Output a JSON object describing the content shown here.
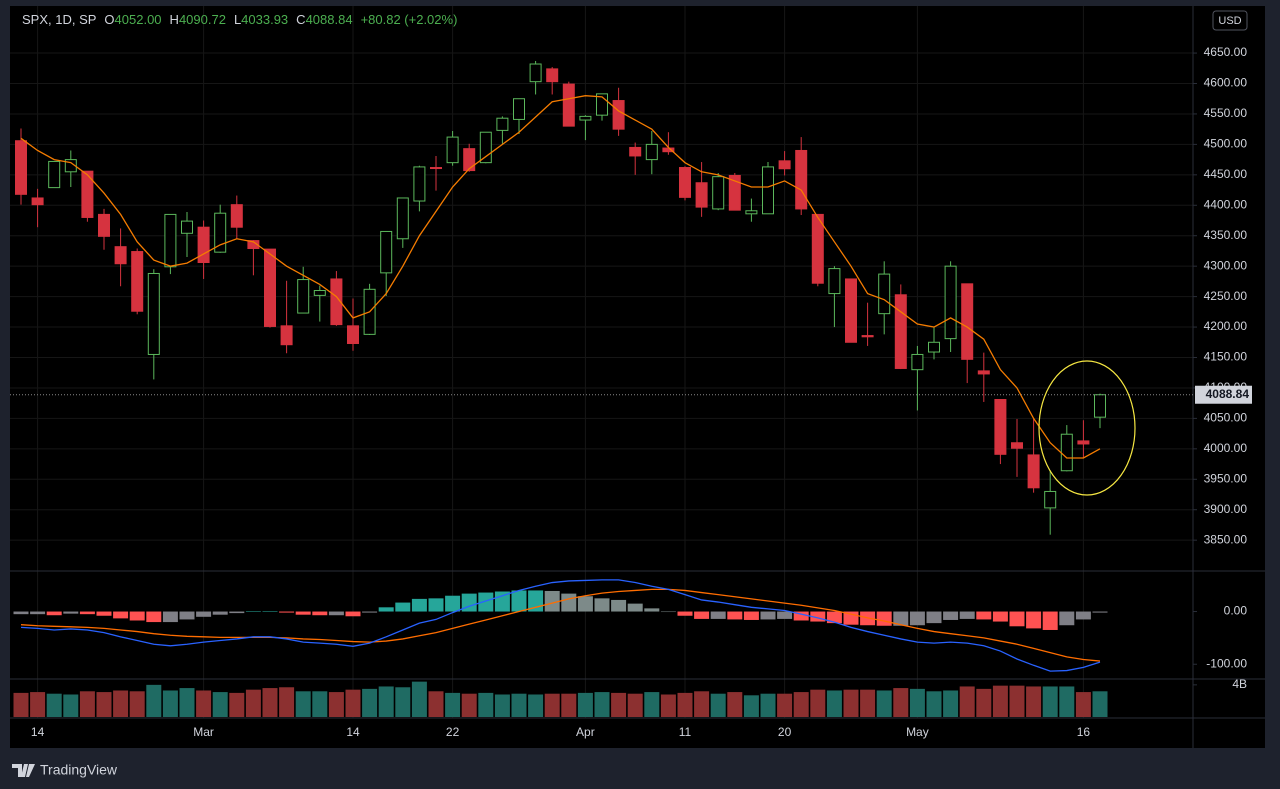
{
  "brand": "TradingView",
  "chart_data": {
    "type": "candlestick",
    "title": "SPX, 1D, SP",
    "ohlc_legend": [
      {
        "key": "O",
        "value": "4052.00"
      },
      {
        "key": "H",
        "value": "4090.72"
      },
      {
        "key": "L",
        "value": "4033.93"
      },
      {
        "key": "C",
        "value": "4088.84"
      }
    ],
    "change": "+80.82 (+2.02%)",
    "currency": "USD",
    "up_color": "#5cb85c",
    "down_color": "#d6333f",
    "grid": true,
    "categories": [
      null,
      "14",
      null,
      null,
      null,
      null,
      null,
      null,
      null,
      null,
      null,
      "Mar",
      null,
      null,
      null,
      null,
      null,
      null,
      null,
      null,
      "14",
      null,
      null,
      null,
      null,
      null,
      "22",
      null,
      null,
      null,
      null,
      null,
      null,
      null,
      "Apr",
      null,
      null,
      null,
      null,
      null,
      "11",
      null,
      null,
      null,
      null,
      null,
      "20",
      null,
      null,
      null,
      null,
      null,
      null,
      null,
      "May",
      null,
      null,
      null,
      null,
      null,
      null,
      null,
      null,
      null,
      "16",
      null
    ],
    "open": [
      4506,
      4412,
      4429,
      4455,
      4456,
      4385,
      4332,
      4324,
      4155,
      4299,
      4354,
      4364,
      4323,
      4401,
      4342,
      4328,
      4202,
      4223,
      4252,
      4279,
      4202,
      4188,
      4289,
      4345,
      4407,
      4462,
      4470,
      4493,
      4470,
      4523,
      4541,
      4603,
      4624,
      4599,
      4540,
      4548,
      4572,
      4495,
      4475,
      4494,
      4462,
      4437,
      4394,
      4449,
      4386,
      4386,
      4473,
      4490,
      4385,
      4255,
      4279,
      4186,
      4222,
      4253,
      4130,
      4159,
      4181,
      4271,
      4128,
      4081,
      4010,
      3990,
      3903,
      3964,
      4013,
      4052
    ],
    "high": [
      4526,
      4427,
      4472,
      4490,
      4456,
      4394,
      4362,
      4329,
      4295,
      4385,
      4389,
      4375,
      4401,
      4416,
      4343,
      4328,
      4276,
      4299,
      4268,
      4292,
      4247,
      4271,
      4357,
      4412,
      4465,
      4481,
      4522,
      4501,
      4520,
      4546,
      4575,
      4637,
      4627,
      4603,
      4548,
      4583,
      4593,
      4503,
      4522,
      4520,
      4464,
      4471,
      4453,
      4453,
      4411,
      4471,
      4489,
      4512,
      4385,
      4300,
      4279,
      4240,
      4308,
      4270,
      4169,
      4200,
      4308,
      4271,
      4158,
      4081,
      4049,
      4050,
      3965,
      4039,
      4047,
      4090.72
    ],
    "low": [
      4401,
      4364,
      4429,
      4430,
      4373,
      4327,
      4267,
      4221,
      4114,
      4287,
      4315,
      4279,
      4322,
      4345,
      4285,
      4199,
      4157,
      4223,
      4209,
      4202,
      4161,
      4187,
      4251,
      4330,
      4390,
      4424,
      4465,
      4455,
      4469,
      4501,
      4517,
      4582,
      4582,
      4530,
      4507,
      4539,
      4514,
      4450,
      4451,
      4483,
      4408,
      4381,
      4392,
      4392,
      4373,
      4386,
      4449,
      4384,
      4267,
      4200,
      4175,
      4169,
      4188,
      4131,
      4063,
      4147,
      4159,
      4108,
      4077,
      3975,
      3954,
      3928,
      3859,
      3963,
      3984,
      4033.93
    ],
    "close": [
      4418,
      4401,
      4472,
      4475,
      4380,
      4349,
      4304,
      4226,
      4288,
      4385,
      4374,
      4306,
      4387,
      4364,
      4329,
      4201,
      4171,
      4278,
      4260,
      4204,
      4173,
      4262,
      4357,
      4412,
      4463,
      4461,
      4512,
      4457,
      4520,
      4543,
      4575,
      4632,
      4603,
      4530,
      4546,
      4583,
      4525,
      4481,
      4500,
      4488,
      4413,
      4397,
      4447,
      4392,
      4391,
      4463,
      4460,
      4394,
      4272,
      4296,
      4175,
      4184,
      4287,
      4132,
      4155,
      4175,
      4300,
      4147,
      4123,
      3991,
      4001,
      3936,
      3930,
      4024,
      4008,
      4088.84
    ],
    "ylim": [
      3801,
      4724
    ],
    "yticks": [
      {
        "value": 3850,
        "label": "3850.00"
      },
      {
        "value": 3900,
        "label": "3900.00"
      },
      {
        "value": 3950,
        "label": "3950.00"
      },
      {
        "value": 4000,
        "label": "4000.00"
      },
      {
        "value": 4050,
        "label": "4050.00"
      },
      {
        "value": 4100,
        "label": "4100.00"
      },
      {
        "value": 4150,
        "label": "4150.00"
      },
      {
        "value": 4200,
        "label": "4200.00"
      },
      {
        "value": 4250,
        "label": "4250.00"
      },
      {
        "value": 4300,
        "label": "4300.00"
      },
      {
        "value": 4350,
        "label": "4350.00"
      },
      {
        "value": 4400,
        "label": "4400.00"
      },
      {
        "value": 4450,
        "label": "4450.00"
      },
      {
        "value": 4500,
        "label": "4500.00"
      },
      {
        "value": 4550,
        "label": "4550.00"
      },
      {
        "value": 4600,
        "label": "4600.00"
      },
      {
        "value": 4650,
        "label": "4650.00"
      }
    ],
    "ma": {
      "color": "#f57c00",
      "values": [
        4510,
        4490,
        4475,
        4470,
        4450,
        4420,
        4385,
        4340,
        4310,
        4300,
        4305,
        4320,
        4335,
        4345,
        4340,
        4320,
        4300,
        4285,
        4270,
        4250,
        4215,
        4225,
        4255,
        4300,
        4350,
        4390,
        4430,
        4460,
        4480,
        4500,
        4520,
        4545,
        4570,
        4575,
        4580,
        4578,
        4555,
        4540,
        4525,
        4495,
        4470,
        4455,
        4450,
        4440,
        4430,
        4430,
        4440,
        4425,
        4380,
        4340,
        4300,
        4255,
        4245,
        4225,
        4205,
        4200,
        4215,
        4200,
        4180,
        4130,
        4100,
        4050,
        4010,
        3985,
        3985,
        4000
      ]
    },
    "macd": {
      "ylim": [
        -128,
        75
      ],
      "yticks": [
        {
          "value": 0,
          "label": "0.00"
        },
        {
          "value": -100,
          "label": "-100.00"
        }
      ],
      "line": {
        "color": "#2962ff",
        "values": [
          -30,
          -32,
          -35,
          -33,
          -35,
          -40,
          -48,
          -55,
          -62,
          -65,
          -62,
          -58,
          -55,
          -52,
          -48,
          -48,
          -52,
          -58,
          -60,
          -62,
          -66,
          -60,
          -48,
          -35,
          -22,
          -15,
          -2,
          10,
          20,
          30,
          40,
          48,
          55,
          58,
          59,
          60,
          60,
          55,
          48,
          42,
          32,
          22,
          18,
          13,
          8,
          5,
          2,
          -5,
          -12,
          -20,
          -30,
          -38,
          -45,
          -52,
          -58,
          -60,
          -58,
          -60,
          -65,
          -75,
          -90,
          -102,
          -113,
          -112,
          -106,
          -96
        ]
      },
      "signal": {
        "color": "#ff6d00",
        "values": [
          -25,
          -27,
          -28,
          -29,
          -30,
          -32,
          -35,
          -38,
          -42,
          -45,
          -47,
          -48,
          -49,
          -49,
          -49,
          -49,
          -50,
          -52,
          -53,
          -55,
          -57,
          -58,
          -56,
          -52,
          -46,
          -40,
          -32,
          -24,
          -16,
          -8,
          0,
          8,
          16,
          24,
          30,
          35,
          38,
          40,
          42,
          42,
          40,
          36,
          32,
          28,
          24,
          20,
          16,
          12,
          7,
          2,
          -5,
          -12,
          -18,
          -25,
          -32,
          -38,
          -42,
          -46,
          -50,
          -56,
          -62,
          -70,
          -78,
          -86,
          -91,
          -94
        ]
      },
      "histogram": {
        "values": [
          -5,
          -5,
          -7,
          -4,
          -5,
          -8,
          -13,
          -17,
          -20,
          -20,
          -15,
          -10,
          -6,
          -3,
          1,
          1,
          -2,
          -6,
          -7,
          -7,
          -9,
          -2,
          8,
          17,
          24,
          25,
          30,
          34,
          36,
          38,
          40,
          40,
          39,
          34,
          29,
          25,
          22,
          15,
          6,
          0,
          -8,
          -14,
          -14,
          -15,
          -16,
          -15,
          -14,
          -17,
          -19,
          -22,
          -25,
          -26,
          -27,
          -27,
          -26,
          -22,
          -16,
          -14,
          -15,
          -19,
          -28,
          -32,
          -35,
          -26,
          -15,
          -2
        ],
        "colors": {
          "pos_up": "#26a69a",
          "pos_down": "#7d8a89",
          "neg_down": "#ff5252",
          "neg_up": "#7f7f86"
        }
      }
    },
    "volume": {
      "ylim": [
        0,
        4.48
      ],
      "yticks": [
        {
          "value": 4,
          "label": "4B"
        }
      ],
      "up_color": "#1f6b63",
      "down_color": "#8c3030",
      "values": [
        3.0,
        3.1,
        2.9,
        2.8,
        3.2,
        3.1,
        3.3,
        3.2,
        4.0,
        3.3,
        3.6,
        3.3,
        3.1,
        3.0,
        3.4,
        3.6,
        3.7,
        3.2,
        3.2,
        3.1,
        3.4,
        3.5,
        3.8,
        3.7,
        4.4,
        3.2,
        3.0,
        2.9,
        3.0,
        2.8,
        2.9,
        2.8,
        2.9,
        2.9,
        3.0,
        3.1,
        3.0,
        2.9,
        3.1,
        2.8,
        3.0,
        3.2,
        2.9,
        3.1,
        2.7,
        2.9,
        2.9,
        3.1,
        3.4,
        3.3,
        3.4,
        3.4,
        3.3,
        3.6,
        3.5,
        3.2,
        3.3,
        3.8,
        3.5,
        3.9,
        3.9,
        3.8,
        3.8,
        3.8,
        3.1,
        3.2
      ]
    }
  }
}
